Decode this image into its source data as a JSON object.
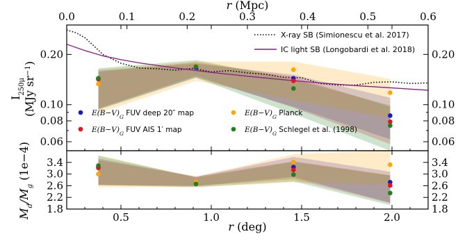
{
  "chart_data": [
    {
      "type": "scatter",
      "panel": "top",
      "x_label": "r (deg)",
      "top_x_label": "r (Mpc)",
      "y_label_line1": "I",
      "y_label_sub": "250μ",
      "y_label_line2": "(MJy sr",
      "y_label_sup": "−1",
      "y_label_close": ")",
      "y_scale": "log",
      "xlim": [
        0.2,
        2.2
      ],
      "ylim": [
        0.053,
        0.3
      ],
      "top_xlim": [
        0.0,
        0.6
      ],
      "x_ticks": [
        0.5,
        1.0,
        1.5,
        2.0
      ],
      "top_x_ticks": [
        "0.0",
        "0.1",
        "0.2",
        "0.3",
        "0.4",
        "0.5",
        "0.6"
      ],
      "y_ticks": [
        {
          "value": 0.2,
          "label": "0.20"
        },
        {
          "value": 0.1,
          "label": "0.10"
        },
        {
          "value": 0.08,
          "label": "0.08"
        },
        {
          "value": 0.06,
          "label": "0.06"
        }
      ],
      "x": [
        0.375,
        0.915,
        1.455,
        1.99
      ],
      "series": [
        {
          "name_math": "E(B−V)",
          "name_sub": "G",
          "name_rest": " FUV deep 20″ map",
          "color": "#1a1acc",
          "values": [
            0.143,
            0.167,
            0.144,
            0.086
          ],
          "band_low": [
            0.094,
            0.146,
            0.097,
            0.062
          ],
          "band_high": [
            0.16,
            0.176,
            0.151,
            0.11
          ]
        },
        {
          "name_math": "E(B−V)",
          "name_sub": "G",
          "name_rest": " FUV AIS 1′ map",
          "color": "#e8121a",
          "values": [
            0.142,
            0.171,
            0.139,
            0.079
          ],
          "band_low": [
            0.095,
            0.149,
            0.096,
            0.058
          ],
          "band_high": [
            0.157,
            0.18,
            0.147,
            0.097
          ]
        },
        {
          "name_math": "E(B−V)",
          "name_sub": "G",
          "name_rest": " Planck",
          "color": "#ffa500",
          "values": [
            0.133,
            0.171,
            0.162,
            0.118
          ],
          "band_low": [
            0.089,
            0.139,
            0.106,
            0.083
          ],
          "band_high": [
            0.163,
            0.181,
            0.181,
            0.143
          ]
        },
        {
          "name_math": "E(B−V)",
          "name_sub": "G",
          "name_rest": " Schlegel et al. (1998)",
          "color": "#1f7f1f",
          "values": [
            0.144,
            0.169,
            0.125,
            0.075
          ],
          "band_low": [
            0.093,
            0.145,
            0.088,
            0.053
          ],
          "band_high": [
            0.165,
            0.185,
            0.142,
            0.099
          ]
        }
      ],
      "lines": [
        {
          "name": "X-ray SB (Simionescu et al. 2017)",
          "color": "#000000",
          "style": "dotted",
          "x": [
            0.2,
            0.25,
            0.3,
            0.35,
            0.4,
            0.5,
            0.6,
            0.7,
            0.8,
            0.9,
            1.0,
            1.1,
            1.2,
            1.3,
            1.4,
            1.5,
            1.6,
            1.7,
            1.8,
            1.9,
            2.0,
            2.1,
            2.2
          ],
          "y": [
            0.28,
            0.27,
            0.252,
            0.225,
            0.2,
            0.177,
            0.166,
            0.164,
            0.161,
            0.165,
            0.157,
            0.16,
            0.155,
            0.152,
            0.146,
            0.145,
            0.134,
            0.131,
            0.131,
            0.136,
            0.137,
            0.134,
            0.135
          ]
        },
        {
          "name": "IC light SB (Longobardi et al. 2018)",
          "color": "#8b1a8b",
          "style": "solid",
          "x": [
            0.2,
            0.3,
            0.4,
            0.5,
            0.6,
            0.7,
            0.8,
            0.9,
            1.0,
            1.2,
            1.4,
            1.6,
            1.8,
            2.0,
            2.2
          ],
          "y": [
            0.23,
            0.211,
            0.196,
            0.186,
            0.178,
            0.172,
            0.166,
            0.161,
            0.156,
            0.148,
            0.141,
            0.135,
            0.13,
            0.126,
            0.122
          ]
        }
      ]
    },
    {
      "type": "scatter",
      "panel": "bottom",
      "x_label": "r (deg)",
      "y_label_line1": "M",
      "y_label_sub1": "d",
      "y_label_slash": "/M",
      "y_label_sub2": "g",
      "y_label_unit": " (1e−4)",
      "xlim": [
        0.2,
        2.2
      ],
      "ylim": [
        1.8,
        3.8
      ],
      "y_ticks": [
        "3.4",
        "3.0",
        "2.6",
        "2.2",
        "1.8"
      ],
      "x": [
        0.375,
        0.915,
        1.455,
        1.99
      ],
      "series": [
        {
          "color": "#1a1acc",
          "values": [
            3.24,
            2.72,
            3.24,
            2.72
          ],
          "band_low": [
            2.63,
            2.59,
            2.9,
            2.02
          ],
          "band_high": [
            3.53,
            2.91,
            3.59,
            3.08
          ]
        },
        {
          "color": "#e8121a",
          "values": [
            3.21,
            2.72,
            3.14,
            2.61
          ],
          "band_low": [
            2.62,
            2.59,
            2.83,
            2.0
          ],
          "band_high": [
            3.48,
            2.91,
            3.44,
            2.96
          ]
        },
        {
          "color": "#ffa500",
          "values": [
            3.0,
            2.73,
            3.41,
            3.32
          ],
          "band_low": [
            2.55,
            2.55,
            2.71,
            2.62
          ],
          "band_high": [
            3.62,
            2.91,
            3.68,
            3.81
          ]
        },
        {
          "color": "#1f7f1f",
          "values": [
            3.29,
            2.66,
            2.98,
            2.35
          ],
          "band_low": [
            2.62,
            2.55,
            2.75,
            1.93
          ],
          "band_high": [
            3.64,
            2.88,
            3.42,
            2.95
          ]
        }
      ]
    }
  ]
}
